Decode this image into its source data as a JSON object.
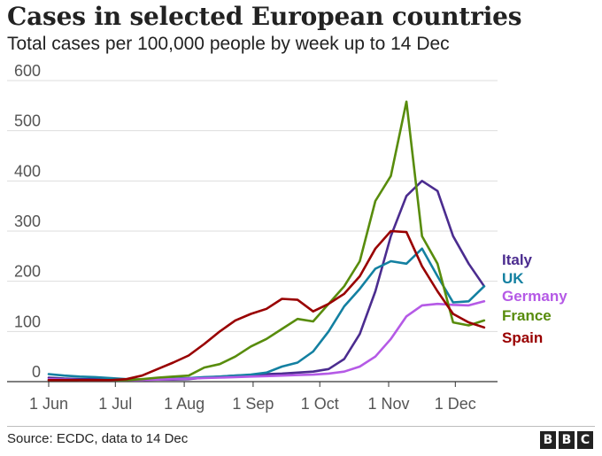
{
  "header": {
    "title": "Cases in selected European countries",
    "subtitle": "Total cases per 100,000 people by week up to 14 Dec"
  },
  "footer": {
    "source": "Source: ECDC, data to 14 Dec",
    "logo_letters": [
      "B",
      "B",
      "C"
    ]
  },
  "chart_data": {
    "type": "line",
    "title": "Cases in selected European countries",
    "subtitle": "Total cases per 100,000 people by week up to 14 Dec",
    "xlabel": "",
    "ylabel": "",
    "ylim": [
      0,
      600
    ],
    "yticks": [
      0,
      100,
      200,
      300,
      400,
      500,
      600
    ],
    "xlim": [
      "2020-06-01",
      "2020-12-20"
    ],
    "xticks": [
      {
        "label": "1 Jun",
        "date": "2020-06-01"
      },
      {
        "label": "1 Jul",
        "date": "2020-07-01"
      },
      {
        "label": "1 Aug",
        "date": "2020-08-01"
      },
      {
        "label": "1 Sep",
        "date": "2020-09-01"
      },
      {
        "label": "1 Oct",
        "date": "2020-10-01"
      },
      {
        "label": "1 Nov",
        "date": "2020-11-01"
      },
      {
        "label": "1 Dec",
        "date": "2020-12-01"
      }
    ],
    "grid": "horizontal",
    "legend": "right",
    "x": [
      "2020-06-01",
      "2020-06-08",
      "2020-06-15",
      "2020-06-22",
      "2020-06-29",
      "2020-07-06",
      "2020-07-13",
      "2020-07-20",
      "2020-07-27",
      "2020-08-03",
      "2020-08-10",
      "2020-08-17",
      "2020-08-24",
      "2020-08-31",
      "2020-09-07",
      "2020-09-14",
      "2020-09-21",
      "2020-09-28",
      "2020-10-05",
      "2020-10-12",
      "2020-10-19",
      "2020-10-26",
      "2020-11-02",
      "2020-11-09",
      "2020-11-16",
      "2020-11-23",
      "2020-11-30",
      "2020-12-07",
      "2020-12-14"
    ],
    "series": [
      {
        "name": "Italy",
        "color": "#4b2c8f",
        "values": [
          8,
          6,
          5,
          5,
          4,
          3,
          4,
          4,
          4,
          5,
          8,
          10,
          12,
          13,
          15,
          16,
          18,
          20,
          25,
          45,
          95,
          180,
          290,
          370,
          400,
          380,
          290,
          235,
          190
        ]
      },
      {
        "name": "UK",
        "color": "#1380a1",
        "values": [
          15,
          12,
          10,
          9,
          7,
          5,
          4,
          5,
          6,
          7,
          9,
          10,
          12,
          14,
          18,
          30,
          38,
          60,
          100,
          150,
          185,
          225,
          240,
          235,
          265,
          210,
          158,
          160,
          190
        ]
      },
      {
        "name": "Germany",
        "color": "#b55ae6",
        "values": [
          5,
          4,
          3,
          3,
          3,
          3,
          3,
          4,
          5,
          6,
          7,
          8,
          9,
          10,
          11,
          12,
          13,
          14,
          16,
          20,
          30,
          50,
          85,
          130,
          152,
          155,
          153,
          152,
          160
        ]
      },
      {
        "name": "France",
        "color": "#588c0c",
        "values": [
          3,
          3,
          3,
          3,
          3,
          3,
          5,
          8,
          10,
          12,
          28,
          35,
          50,
          70,
          85,
          105,
          125,
          120,
          155,
          190,
          240,
          360,
          410,
          558,
          290,
          235,
          118,
          112,
          122
        ]
      },
      {
        "name": "Spain",
        "color": "#990000",
        "values": [
          3,
          3,
          3,
          3,
          3,
          5,
          12,
          25,
          38,
          52,
          75,
          100,
          122,
          135,
          145,
          165,
          163,
          140,
          155,
          175,
          210,
          265,
          300,
          298,
          230,
          180,
          135,
          118,
          108
        ]
      }
    ]
  }
}
